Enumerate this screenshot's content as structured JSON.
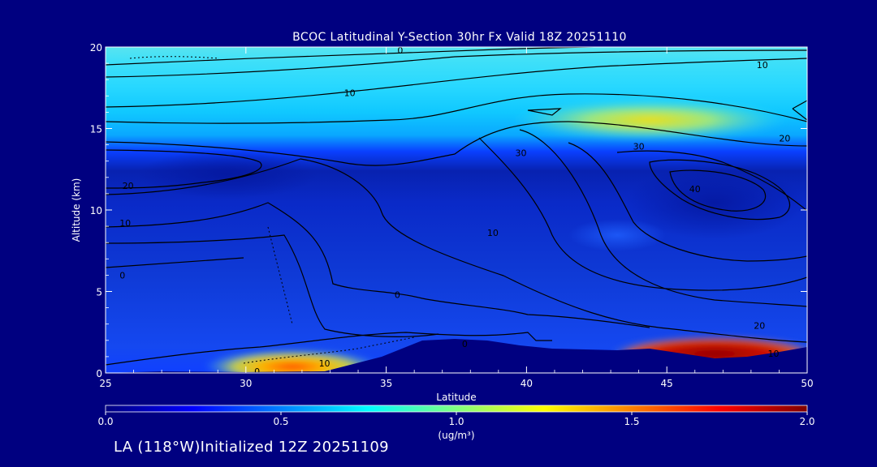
{
  "chart_data": {
    "type": "heatmap",
    "title": "BCOC Latitudinal Y-Section 30hr  Fx Valid 18Z 20251110",
    "xlabel": "Latitude",
    "ylabel": "Altitude (km)",
    "xlim": [
      25,
      50
    ],
    "ylim": [
      0,
      20
    ],
    "x_ticks": [
      "25",
      "30",
      "35",
      "40",
      "45",
      "50"
    ],
    "y_ticks": [
      "0",
      "5",
      "10",
      "15",
      "20"
    ],
    "colorbar": {
      "range": [
        0.0,
        2.0
      ],
      "ticks": [
        "0.0",
        "0.5",
        "1.0",
        "1.5",
        "2.0"
      ],
      "unit": "(ug/m³)",
      "colors": [
        "#00007f",
        "#0000ff",
        "#0080ff",
        "#00ffff",
        "#80ff80",
        "#ffff00",
        "#ff8000",
        "#ff0000",
        "#7f0000"
      ]
    },
    "contour_labels": [
      {
        "text": "0",
        "lat": 35.5,
        "alt": 19.8
      },
      {
        "text": "10",
        "lat": 33.7,
        "alt": 17.2
      },
      {
        "text": "10",
        "lat": 48.4,
        "alt": 18.9
      },
      {
        "text": "20",
        "lat": 49.2,
        "alt": 14.4
      },
      {
        "text": "30",
        "lat": 44.0,
        "alt": 13.9
      },
      {
        "text": "30",
        "lat": 39.8,
        "alt": 13.5
      },
      {
        "text": "40",
        "lat": 46.0,
        "alt": 11.3
      },
      {
        "text": "20",
        "lat": 25.8,
        "alt": 11.5
      },
      {
        "text": "10",
        "lat": 25.7,
        "alt": 9.2
      },
      {
        "text": "0",
        "lat": 25.6,
        "alt": 6.0
      },
      {
        "text": "10",
        "lat": 38.8,
        "alt": 8.6
      },
      {
        "text": "0",
        "lat": 35.4,
        "alt": 4.8
      },
      {
        "text": "0",
        "lat": 37.8,
        "alt": 1.8
      },
      {
        "text": "0",
        "lat": 30.4,
        "alt": 0.1
      },
      {
        "text": "10",
        "lat": 32.8,
        "alt": 0.6
      },
      {
        "text": "20",
        "lat": 48.3,
        "alt": 2.9
      },
      {
        "text": "10",
        "lat": 48.8,
        "alt": 1.2
      }
    ]
  },
  "footer": "LA (118°W)Initialized 12Z 20251109"
}
